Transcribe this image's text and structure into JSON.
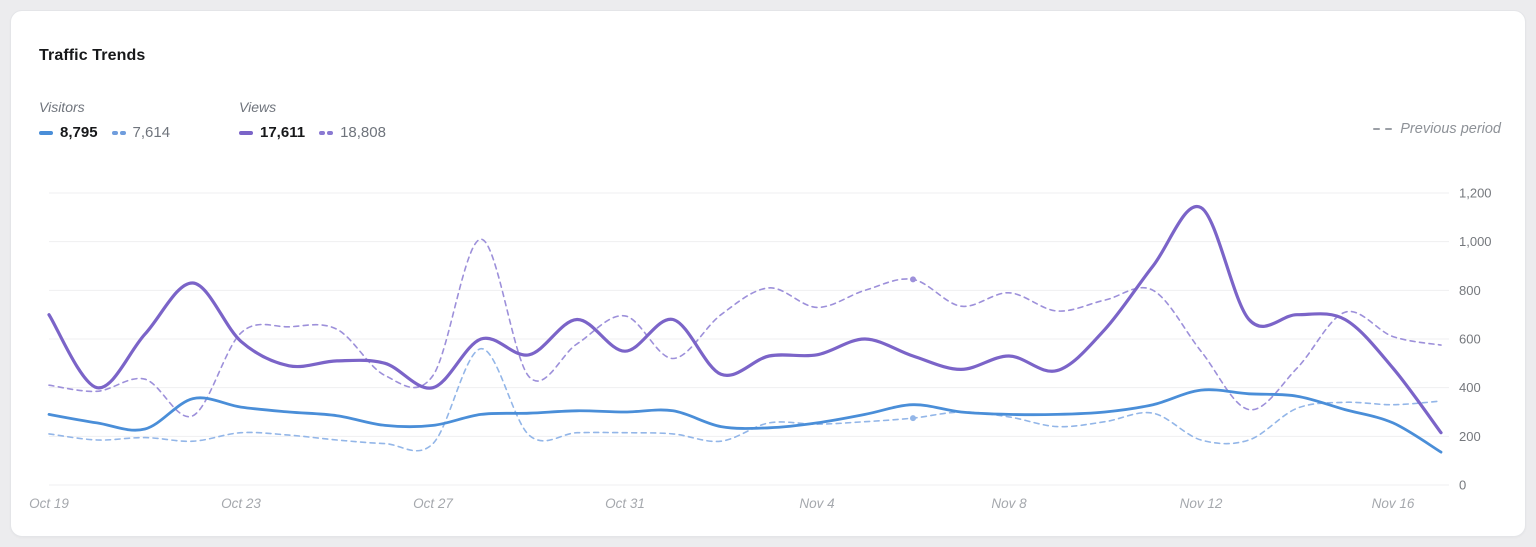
{
  "card": {
    "title": "Traffic Trends"
  },
  "legend": {
    "visitors": {
      "label": "Visitors",
      "current": "8,795",
      "previous": "7,614"
    },
    "views": {
      "label": "Views",
      "current": "17,611",
      "previous": "18,808"
    },
    "previous_period_label": "Previous period"
  },
  "colors": {
    "visitors_current": "#4a8ed8",
    "visitors_previous": "#93b6e8",
    "views_current": "#7b64c8",
    "views_previous": "#9d90da",
    "gridline": "#efeff1",
    "axis_text": "#75787d",
    "date_text": "#a5a8ad"
  },
  "chart_data": {
    "type": "line",
    "title": "Traffic Trends",
    "xlabel": "",
    "ylabel": "",
    "ylim": [
      0,
      1200
    ],
    "grid": "horizontal",
    "legend_position": "top-left",
    "y_ticks": [
      0,
      200,
      400,
      600,
      800,
      1000,
      1200
    ],
    "y_tick_labels": [
      "0",
      "200",
      "400",
      "600",
      "800",
      "1,000",
      "1,200"
    ],
    "x": [
      "Oct 19",
      "Oct 20",
      "Oct 21",
      "Oct 22",
      "Oct 23",
      "Oct 24",
      "Oct 25",
      "Oct 26",
      "Oct 27",
      "Oct 28",
      "Oct 29",
      "Oct 30",
      "Oct 31",
      "Nov 1",
      "Nov 2",
      "Nov 3",
      "Nov 4",
      "Nov 5",
      "Nov 6",
      "Nov 7",
      "Nov 8",
      "Nov 9",
      "Nov 10",
      "Nov 11",
      "Nov 12",
      "Nov 13",
      "Nov 14",
      "Nov 15",
      "Nov 16",
      "Nov 17"
    ],
    "x_tick_indices": [
      0,
      4,
      8,
      12,
      16,
      20,
      24,
      28
    ],
    "x_tick_labels": [
      "Oct 19",
      "Oct 23",
      "Oct 27",
      "Oct 31",
      "Nov 4",
      "Nov 8",
      "Nov 12",
      "Nov 16"
    ],
    "series": [
      {
        "name": "Views (previous period)",
        "key": "views-previous",
        "total": "18,808",
        "style": "dashed",
        "width": 1.6,
        "color": "#9d90da",
        "values": [
          410,
          385,
          435,
          285,
          625,
          650,
          640,
          450,
          450,
          1010,
          445,
          580,
          695,
          520,
          700,
          810,
          730,
          800,
          845,
          735,
          790,
          715,
          760,
          800,
          550,
          310,
          480,
          710,
          610,
          575
        ]
      },
      {
        "name": "Visitors (previous period)",
        "key": "visitors-previous",
        "total": "7,614",
        "style": "dashed",
        "width": 1.6,
        "color": "#93b6e8",
        "values": [
          210,
          185,
          195,
          180,
          215,
          205,
          185,
          170,
          170,
          560,
          205,
          215,
          215,
          210,
          180,
          255,
          250,
          260,
          275,
          300,
          280,
          240,
          260,
          295,
          185,
          185,
          315,
          340,
          330,
          345
        ]
      },
      {
        "name": "Views (current period)",
        "key": "views-current",
        "total": "17,611",
        "style": "solid",
        "width": 3.2,
        "color": "#7b64c8",
        "values": [
          700,
          400,
          620,
          830,
          590,
          490,
          510,
          500,
          400,
          600,
          535,
          680,
          550,
          680,
          455,
          530,
          535,
          600,
          530,
          475,
          530,
          470,
          640,
          900,
          1140,
          680,
          700,
          680,
          480,
          215
        ]
      },
      {
        "name": "Visitors (current period)",
        "key": "visitors-current",
        "total": "8,795",
        "style": "solid",
        "width": 2.8,
        "color": "#4a8ed8",
        "values": [
          290,
          255,
          230,
          355,
          320,
          300,
          285,
          245,
          245,
          290,
          295,
          305,
          300,
          305,
          240,
          235,
          255,
          290,
          330,
          300,
          290,
          290,
          300,
          330,
          390,
          375,
          365,
          310,
          255,
          135
        ]
      }
    ],
    "point_markers": [
      {
        "series_key": "views-previous",
        "index": 18
      },
      {
        "series_key": "visitors-previous",
        "index": 18
      }
    ]
  }
}
